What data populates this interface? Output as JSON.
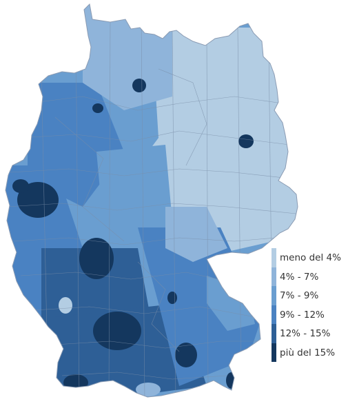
{
  "map": {
    "subject": "Germany districts choropleth",
    "legend": {
      "items": [
        {
          "label": "meno del 4%",
          "color": "#b3cde3"
        },
        {
          "label": "4% - 7%",
          "color": "#8fb4da"
        },
        {
          "label": "7% - 9%",
          "color": "#6a9ed0"
        },
        {
          "label": "9% - 12%",
          "color": "#4a82c2"
        },
        {
          "label": "12% - 15%",
          "color": "#2e5f96"
        },
        {
          "label": "più del 15%",
          "color": "#14375e"
        }
      ]
    },
    "border_color": "#7a8ea8"
  }
}
